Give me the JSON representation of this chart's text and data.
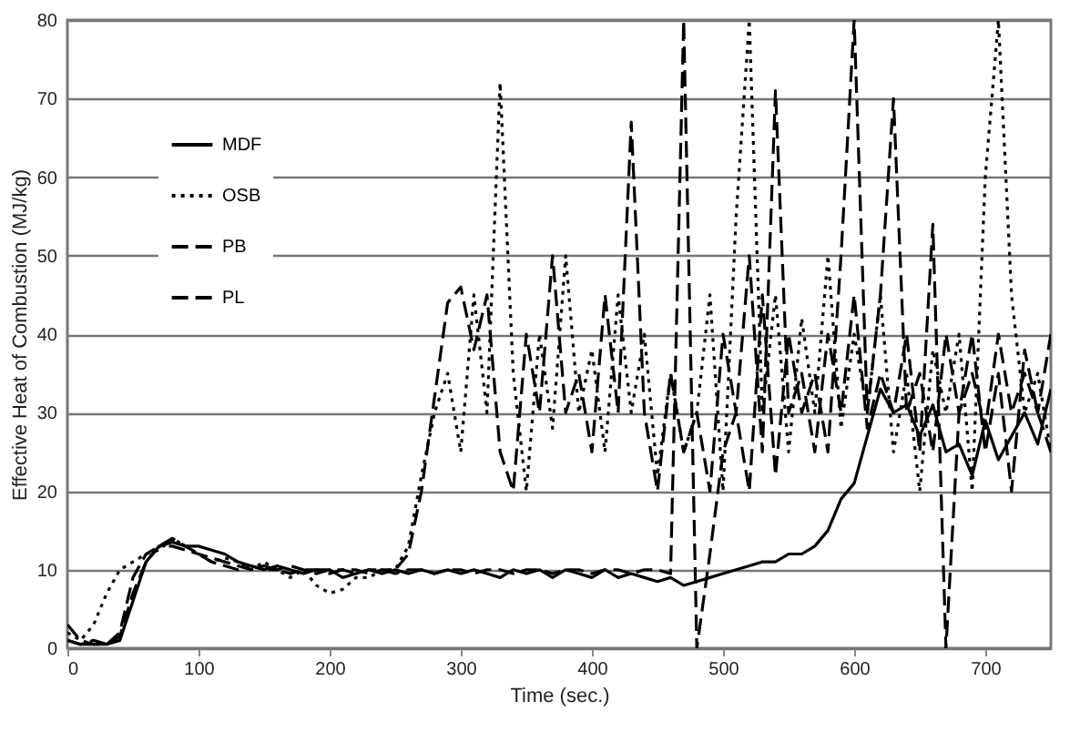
{
  "chart_data": {
    "type": "line",
    "xlabel": "Time (sec.)",
    "ylabel": "Effective Heat of Combustion (MJ/kg)",
    "x": [
      0,
      10,
      20,
      30,
      40,
      50,
      60,
      70,
      80,
      90,
      100,
      110,
      120,
      130,
      140,
      150,
      160,
      170,
      180,
      190,
      200,
      210,
      220,
      230,
      240,
      250,
      260,
      270,
      280,
      290,
      300,
      310,
      320,
      330,
      340,
      350,
      360,
      370,
      380,
      390,
      400,
      410,
      420,
      430,
      440,
      450,
      460,
      470,
      480,
      490,
      500,
      510,
      520,
      530,
      540,
      550,
      560,
      570,
      580,
      590,
      600,
      610,
      620,
      630,
      640,
      650,
      660,
      670,
      680,
      690,
      700,
      710,
      720,
      730,
      740,
      750
    ],
    "xlim": [
      0,
      750
    ],
    "xticks": [
      0,
      100,
      200,
      300,
      400,
      500,
      600,
      700
    ],
    "ylim": [
      0,
      80
    ],
    "yticks": [
      0,
      10,
      20,
      30,
      40,
      50,
      60,
      70,
      80
    ],
    "grid": "y",
    "legend": "top left",
    "series": [
      {
        "name": "MDF",
        "color": "#000000",
        "line_style": "solid",
        "values": [
          1,
          0.5,
          0.5,
          0.5,
          1,
          6,
          11,
          13,
          13.5,
          13,
          13,
          12.5,
          12,
          11,
          10.5,
          10,
          10.5,
          10,
          9.5,
          10,
          10,
          9,
          9.5,
          10,
          9.5,
          10,
          9.5,
          10,
          9.5,
          10,
          9.5,
          10,
          9.5,
          9,
          10,
          9.5,
          10,
          9,
          10,
          9.5,
          9,
          10,
          9,
          9.5,
          9,
          8.5,
          9,
          8,
          8.5,
          9,
          9.5,
          10,
          10.5,
          11,
          11,
          12,
          12,
          13,
          15,
          19,
          21,
          27,
          33,
          30,
          31,
          27,
          31,
          25,
          26,
          22,
          29,
          24,
          27,
          30,
          26,
          33
        ]
      },
      {
        "name": "OSB",
        "color": "#000000",
        "line_style": "dotted",
        "values": [
          2,
          1,
          3,
          7,
          10,
          11,
          12,
          12.5,
          14,
          13,
          12,
          11,
          11.5,
          11,
          10,
          11,
          10,
          9,
          10,
          8,
          7,
          7.5,
          9,
          9,
          10,
          10,
          13,
          22,
          30,
          35,
          25,
          45,
          30,
          72,
          35,
          20,
          40,
          28,
          50,
          30,
          38,
          25,
          45,
          30,
          40,
          22,
          35,
          25,
          30,
          45,
          20,
          55,
          80,
          30,
          45,
          25,
          42,
          30,
          50,
          28,
          40,
          30,
          45,
          25,
          35,
          20,
          38,
          30,
          40,
          20,
          60,
          80,
          45,
          30,
          35,
          25
        ]
      },
      {
        "name": "PB",
        "color": "#000000",
        "line_style": "dashed",
        "values": [
          3,
          1,
          0.5,
          0.5,
          2,
          9,
          12,
          13,
          14,
          13,
          12,
          11,
          10.5,
          10,
          10.5,
          10,
          10,
          10.5,
          10,
          9.5,
          10,
          10,
          9.5,
          10,
          10,
          9.5,
          10,
          10,
          9.5,
          10,
          10,
          9.5,
          10,
          10,
          9.5,
          10,
          10,
          9.5,
          10,
          10,
          9.5,
          10,
          10,
          9.5,
          10,
          10,
          9.5,
          80,
          0,
          12,
          25,
          30,
          20,
          45,
          22,
          40,
          30,
          35,
          25,
          50,
          80,
          30,
          45,
          70,
          30,
          35,
          25,
          40,
          30,
          35,
          28,
          40,
          30,
          35,
          30,
          40
        ]
      },
      {
        "name": "PL",
        "color": "#000000",
        "line_style": "dashed",
        "values": [
          1,
          0.5,
          1,
          0.5,
          1.5,
          7,
          11,
          13,
          13,
          12.5,
          12,
          11.5,
          11,
          10.5,
          10,
          10.5,
          10,
          9.5,
          10,
          10,
          9.5,
          10,
          10,
          9.5,
          10,
          10,
          12,
          20,
          32,
          44,
          46,
          38,
          45,
          25,
          20,
          40,
          30,
          50,
          30,
          35,
          25,
          45,
          30,
          67,
          30,
          20,
          35,
          25,
          30,
          20,
          40,
          30,
          50,
          25,
          71,
          30,
          35,
          25,
          40,
          30,
          45,
          28,
          35,
          30,
          40,
          25,
          54,
          0,
          30,
          40,
          25,
          35,
          20,
          38,
          30,
          25
        ]
      }
    ]
  }
}
